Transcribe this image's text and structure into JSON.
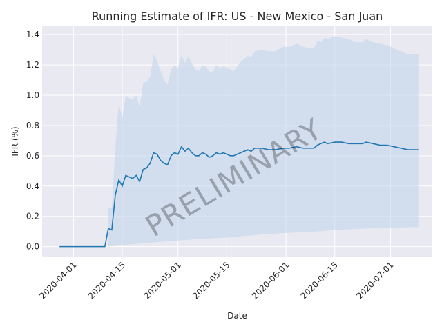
{
  "chart_data": {
    "type": "line",
    "title": "Running Estimate of IFR: US - New Mexico - San Juan",
    "xlabel": "Date",
    "ylabel": "IFR (%)",
    "watermark": "PRELIMINARY",
    "grid": true,
    "xlim": [
      "2020-03-23",
      "2020-07-13"
    ],
    "ylim": [
      -0.07,
      1.46
    ],
    "yticks": [
      "0.0",
      "0.2",
      "0.4",
      "0.6",
      "0.8",
      "1.0",
      "1.2",
      "1.4"
    ],
    "xticks": [
      "2020-04-01",
      "2020-04-15",
      "2020-05-01",
      "2020-05-15",
      "2020-06-01",
      "2020-06-15",
      "2020-07-01"
    ],
    "colors": {
      "line": "#1f77b4",
      "band": "#c6d8ec",
      "background": "#e9e9f1",
      "grid": "#ffffff"
    },
    "series": [
      {
        "values": [
          [
            "2020-03-28",
            0.0
          ],
          [
            "2020-04-10",
            0.0
          ],
          [
            "2020-04-11",
            0.12
          ],
          [
            "2020-04-12",
            0.11
          ],
          [
            "2020-04-13",
            0.34
          ],
          [
            "2020-04-14",
            0.44
          ],
          [
            "2020-04-15",
            0.4
          ],
          [
            "2020-04-16",
            0.47
          ],
          [
            "2020-04-17",
            0.46
          ],
          [
            "2020-04-18",
            0.45
          ],
          [
            "2020-04-19",
            0.47
          ],
          [
            "2020-04-20",
            0.43
          ],
          [
            "2020-04-21",
            0.51
          ],
          [
            "2020-04-22",
            0.52
          ],
          [
            "2020-04-23",
            0.55
          ],
          [
            "2020-04-24",
            0.62
          ],
          [
            "2020-04-25",
            0.61
          ],
          [
            "2020-04-26",
            0.57
          ],
          [
            "2020-04-27",
            0.55
          ],
          [
            "2020-04-28",
            0.54
          ],
          [
            "2020-04-29",
            0.6
          ],
          [
            "2020-04-30",
            0.62
          ],
          [
            "2020-05-01",
            0.61
          ],
          [
            "2020-05-02",
            0.66
          ],
          [
            "2020-05-03",
            0.63
          ],
          [
            "2020-05-04",
            0.65
          ],
          [
            "2020-05-05",
            0.62
          ],
          [
            "2020-05-06",
            0.6
          ],
          [
            "2020-05-07",
            0.6
          ],
          [
            "2020-05-08",
            0.62
          ],
          [
            "2020-05-09",
            0.61
          ],
          [
            "2020-05-10",
            0.59
          ],
          [
            "2020-05-11",
            0.6
          ],
          [
            "2020-05-12",
            0.62
          ],
          [
            "2020-05-13",
            0.61
          ],
          [
            "2020-05-14",
            0.62
          ],
          [
            "2020-05-15",
            0.61
          ],
          [
            "2020-05-16",
            0.6
          ],
          [
            "2020-05-17",
            0.6
          ],
          [
            "2020-05-18",
            0.61
          ],
          [
            "2020-05-19",
            0.62
          ],
          [
            "2020-05-20",
            0.63
          ],
          [
            "2020-05-21",
            0.64
          ],
          [
            "2020-05-22",
            0.63
          ],
          [
            "2020-05-23",
            0.65
          ],
          [
            "2020-05-25",
            0.65
          ],
          [
            "2020-05-27",
            0.64
          ],
          [
            "2020-05-29",
            0.64
          ],
          [
            "2020-05-31",
            0.65
          ],
          [
            "2020-06-02",
            0.65
          ],
          [
            "2020-06-04",
            0.66
          ],
          [
            "2020-06-06",
            0.65
          ],
          [
            "2020-06-08",
            0.65
          ],
          [
            "2020-06-09",
            0.65
          ],
          [
            "2020-06-10",
            0.67
          ],
          [
            "2020-06-11",
            0.68
          ],
          [
            "2020-06-12",
            0.69
          ],
          [
            "2020-06-13",
            0.68
          ],
          [
            "2020-06-15",
            0.69
          ],
          [
            "2020-06-17",
            0.69
          ],
          [
            "2020-06-19",
            0.68
          ],
          [
            "2020-06-21",
            0.68
          ],
          [
            "2020-06-23",
            0.68
          ],
          [
            "2020-06-24",
            0.69
          ],
          [
            "2020-06-26",
            0.68
          ],
          [
            "2020-06-28",
            0.67
          ],
          [
            "2020-06-30",
            0.67
          ],
          [
            "2020-07-02",
            0.66
          ],
          [
            "2020-07-04",
            0.65
          ],
          [
            "2020-07-06",
            0.64
          ],
          [
            "2020-07-09",
            0.64
          ]
        ],
        "lower": [
          [
            "2020-04-11",
            0.0
          ],
          [
            "2020-04-15",
            0.01
          ],
          [
            "2020-04-20",
            0.02
          ],
          [
            "2020-04-25",
            0.03
          ],
          [
            "2020-05-01",
            0.04
          ],
          [
            "2020-05-07",
            0.05
          ],
          [
            "2020-05-15",
            0.06
          ],
          [
            "2020-05-25",
            0.08
          ],
          [
            "2020-06-01",
            0.09
          ],
          [
            "2020-06-10",
            0.1
          ],
          [
            "2020-06-15",
            0.11
          ],
          [
            "2020-06-25",
            0.12
          ],
          [
            "2020-07-09",
            0.13
          ]
        ],
        "upper": [
          [
            "2020-04-11",
            0.26
          ],
          [
            "2020-04-12",
            0.25
          ],
          [
            "2020-04-13",
            0.65
          ],
          [
            "2020-04-14",
            0.95
          ],
          [
            "2020-04-15",
            0.85
          ],
          [
            "2020-04-16",
            1.0
          ],
          [
            "2020-04-17",
            0.98
          ],
          [
            "2020-04-18",
            0.97
          ],
          [
            "2020-04-19",
            1.0
          ],
          [
            "2020-04-20",
            0.92
          ],
          [
            "2020-04-21",
            1.08
          ],
          [
            "2020-04-22",
            1.09
          ],
          [
            "2020-04-23",
            1.12
          ],
          [
            "2020-04-24",
            1.27
          ],
          [
            "2020-04-25",
            1.23
          ],
          [
            "2020-04-26",
            1.16
          ],
          [
            "2020-04-27",
            1.1
          ],
          [
            "2020-04-28",
            1.07
          ],
          [
            "2020-04-29",
            1.17
          ],
          [
            "2020-04-30",
            1.2
          ],
          [
            "2020-05-01",
            1.18
          ],
          [
            "2020-05-02",
            1.27
          ],
          [
            "2020-05-03",
            1.21
          ],
          [
            "2020-05-04",
            1.26
          ],
          [
            "2020-05-05",
            1.21
          ],
          [
            "2020-05-06",
            1.17
          ],
          [
            "2020-05-07",
            1.16
          ],
          [
            "2020-05-08",
            1.2
          ],
          [
            "2020-05-09",
            1.19
          ],
          [
            "2020-05-10",
            1.15
          ],
          [
            "2020-05-11",
            1.15
          ],
          [
            "2020-05-12",
            1.2
          ],
          [
            "2020-05-13",
            1.18
          ],
          [
            "2020-05-14",
            1.19
          ],
          [
            "2020-05-15",
            1.18
          ],
          [
            "2020-05-16",
            1.17
          ],
          [
            "2020-05-17",
            1.16
          ],
          [
            "2020-05-18",
            1.19
          ],
          [
            "2020-05-19",
            1.22
          ],
          [
            "2020-05-20",
            1.24
          ],
          [
            "2020-05-21",
            1.26
          ],
          [
            "2020-05-22",
            1.25
          ],
          [
            "2020-05-23",
            1.29
          ],
          [
            "2020-05-25",
            1.3
          ],
          [
            "2020-05-27",
            1.29
          ],
          [
            "2020-05-29",
            1.29
          ],
          [
            "2020-05-31",
            1.32
          ],
          [
            "2020-06-02",
            1.32
          ],
          [
            "2020-06-04",
            1.34
          ],
          [
            "2020-06-06",
            1.32
          ],
          [
            "2020-06-08",
            1.31
          ],
          [
            "2020-06-09",
            1.31
          ],
          [
            "2020-06-10",
            1.36
          ],
          [
            "2020-06-11",
            1.35
          ],
          [
            "2020-06-12",
            1.38
          ],
          [
            "2020-06-13",
            1.37
          ],
          [
            "2020-06-15",
            1.39
          ],
          [
            "2020-06-17",
            1.38
          ],
          [
            "2020-06-19",
            1.37
          ],
          [
            "2020-06-21",
            1.35
          ],
          [
            "2020-06-23",
            1.35
          ],
          [
            "2020-06-24",
            1.37
          ],
          [
            "2020-06-26",
            1.35
          ],
          [
            "2020-06-28",
            1.34
          ],
          [
            "2020-06-30",
            1.33
          ],
          [
            "2020-07-02",
            1.31
          ],
          [
            "2020-07-04",
            1.29
          ],
          [
            "2020-07-06",
            1.27
          ],
          [
            "2020-07-09",
            1.27
          ]
        ]
      }
    ]
  }
}
